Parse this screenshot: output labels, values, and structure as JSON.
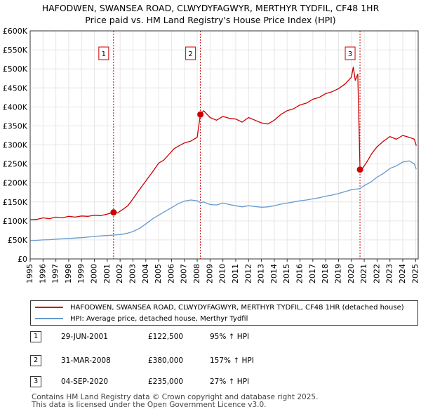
{
  "title": {
    "line1": "HAFODWEN, SWANSEA ROAD, CLWYDYFAGWYR, MERTHYR TYDFIL, CF48 1HR",
    "line2": "Price paid vs. HM Land Registry's House Price Index (HPI)"
  },
  "chart_data": {
    "type": "line",
    "xlim": [
      1995,
      2025.2
    ],
    "ylim": [
      0,
      600000
    ],
    "x_ticks": [
      1995,
      1996,
      1997,
      1998,
      1999,
      2000,
      2001,
      2002,
      2003,
      2004,
      2005,
      2006,
      2007,
      2008,
      2009,
      2010,
      2011,
      2012,
      2013,
      2014,
      2015,
      2016,
      2017,
      2018,
      2019,
      2020,
      2021,
      2022,
      2023,
      2024,
      2025
    ],
    "y_ticks": [
      0,
      50000,
      100000,
      150000,
      200000,
      250000,
      300000,
      350000,
      400000,
      450000,
      500000,
      550000,
      600000
    ],
    "y_tick_labels": [
      "£0",
      "£50K",
      "£100K",
      "£150K",
      "£200K",
      "£250K",
      "£300K",
      "£350K",
      "£400K",
      "£450K",
      "£500K",
      "£550K",
      "£600K"
    ],
    "series": [
      {
        "name": "HAFODWEN, SWANSEA ROAD, CLWYDYFAGWYR, MERTHYR TYDFIL, CF48 1HR (detached house)",
        "color": "#cc0000",
        "points": [
          [
            1995.0,
            103000
          ],
          [
            1995.5,
            104000
          ],
          [
            1996.0,
            108000
          ],
          [
            1996.5,
            106000
          ],
          [
            1997.0,
            110000
          ],
          [
            1997.5,
            108000
          ],
          [
            1998.0,
            112000
          ],
          [
            1998.5,
            110000
          ],
          [
            1999.0,
            113000
          ],
          [
            1999.5,
            112000
          ],
          [
            2000.0,
            115000
          ],
          [
            2000.5,
            114000
          ],
          [
            2001.0,
            118000
          ],
          [
            2001.49,
            122500
          ],
          [
            2001.8,
            121000
          ],
          [
            2002.2,
            130000
          ],
          [
            2002.6,
            140000
          ],
          [
            2003.0,
            158000
          ],
          [
            2003.5,
            182000
          ],
          [
            2004.0,
            205000
          ],
          [
            2004.5,
            228000
          ],
          [
            2005.0,
            252000
          ],
          [
            2005.4,
            260000
          ],
          [
            2005.8,
            275000
          ],
          [
            2006.2,
            290000
          ],
          [
            2006.6,
            298000
          ],
          [
            2007.0,
            305000
          ],
          [
            2007.5,
            310000
          ],
          [
            2008.0,
            320000
          ],
          [
            2008.25,
            380000
          ],
          [
            2008.5,
            390000
          ],
          [
            2009.0,
            372000
          ],
          [
            2009.5,
            365000
          ],
          [
            2010.0,
            375000
          ],
          [
            2010.5,
            370000
          ],
          [
            2011.0,
            368000
          ],
          [
            2011.5,
            360000
          ],
          [
            2012.0,
            372000
          ],
          [
            2012.5,
            365000
          ],
          [
            2013.0,
            358000
          ],
          [
            2013.5,
            355000
          ],
          [
            2014.0,
            365000
          ],
          [
            2014.5,
            380000
          ],
          [
            2015.0,
            390000
          ],
          [
            2015.5,
            395000
          ],
          [
            2016.0,
            405000
          ],
          [
            2016.5,
            410000
          ],
          [
            2017.0,
            420000
          ],
          [
            2017.5,
            425000
          ],
          [
            2018.0,
            435000
          ],
          [
            2018.5,
            440000
          ],
          [
            2019.0,
            448000
          ],
          [
            2019.5,
            460000
          ],
          [
            2020.0,
            478000
          ],
          [
            2020.15,
            505000
          ],
          [
            2020.3,
            470000
          ],
          [
            2020.5,
            486000
          ],
          [
            2020.67,
            235000
          ],
          [
            2020.9,
            240000
          ],
          [
            2021.2,
            255000
          ],
          [
            2021.6,
            278000
          ],
          [
            2022.0,
            295000
          ],
          [
            2022.5,
            310000
          ],
          [
            2023.0,
            322000
          ],
          [
            2023.5,
            315000
          ],
          [
            2024.0,
            325000
          ],
          [
            2024.5,
            320000
          ],
          [
            2024.9,
            315000
          ],
          [
            2025.05,
            298000
          ]
        ]
      },
      {
        "name": "HPI: Average price, detached house, Merthyr Tydfil",
        "color": "#6699cc",
        "points": [
          [
            1995.0,
            48000
          ],
          [
            1995.5,
            49000
          ],
          [
            1996.0,
            50000
          ],
          [
            1996.5,
            50500
          ],
          [
            1997.0,
            52000
          ],
          [
            1997.5,
            53000
          ],
          [
            1998.0,
            54000
          ],
          [
            1998.5,
            55000
          ],
          [
            1999.0,
            56000
          ],
          [
            1999.5,
            57500
          ],
          [
            2000.0,
            59000
          ],
          [
            2000.5,
            60500
          ],
          [
            2001.0,
            61500
          ],
          [
            2001.49,
            62800
          ],
          [
            2002.0,
            64000
          ],
          [
            2002.5,
            67000
          ],
          [
            2003.0,
            72000
          ],
          [
            2003.5,
            80000
          ],
          [
            2004.0,
            92000
          ],
          [
            2004.5,
            105000
          ],
          [
            2005.0,
            115000
          ],
          [
            2005.5,
            125000
          ],
          [
            2006.0,
            135000
          ],
          [
            2006.5,
            145000
          ],
          [
            2007.0,
            152000
          ],
          [
            2007.5,
            155000
          ],
          [
            2008.0,
            153000
          ],
          [
            2008.25,
            148000
          ],
          [
            2008.5,
            150000
          ],
          [
            2009.0,
            143000
          ],
          [
            2009.5,
            142000
          ],
          [
            2010.0,
            147000
          ],
          [
            2010.5,
            143000
          ],
          [
            2011.0,
            140000
          ],
          [
            2011.5,
            137000
          ],
          [
            2012.0,
            140000
          ],
          [
            2012.5,
            138000
          ],
          [
            2013.0,
            136000
          ],
          [
            2013.5,
            137000
          ],
          [
            2014.0,
            140000
          ],
          [
            2014.5,
            144000
          ],
          [
            2015.0,
            147000
          ],
          [
            2015.5,
            150000
          ],
          [
            2016.0,
            153000
          ],
          [
            2016.5,
            155000
          ],
          [
            2017.0,
            158000
          ],
          [
            2017.5,
            161000
          ],
          [
            2018.0,
            165000
          ],
          [
            2018.5,
            168000
          ],
          [
            2019.0,
            172000
          ],
          [
            2019.5,
            177000
          ],
          [
            2020.0,
            182000
          ],
          [
            2020.67,
            185000
          ],
          [
            2021.0,
            193000
          ],
          [
            2021.5,
            202000
          ],
          [
            2022.0,
            215000
          ],
          [
            2022.5,
            225000
          ],
          [
            2023.0,
            238000
          ],
          [
            2023.5,
            245000
          ],
          [
            2024.0,
            255000
          ],
          [
            2024.5,
            258000
          ],
          [
            2024.9,
            250000
          ],
          [
            2025.05,
            236000
          ]
        ]
      }
    ],
    "sales": [
      {
        "label": "1",
        "x": 2001.49,
        "price": 122500
      },
      {
        "label": "2",
        "x": 2008.25,
        "price": 380000
      },
      {
        "label": "3",
        "x": 2020.67,
        "price": 235000
      }
    ],
    "grid": true
  },
  "legend": {
    "property_label": "HAFODWEN, SWANSEA ROAD, CLWYDYFAGWYR, MERTHYR TYDFIL, CF48 1HR (detached house)",
    "hpi_label": "HPI: Average price, detached house, Merthyr Tydfil",
    "property_color": "#cc0000",
    "hpi_color": "#6699cc"
  },
  "transactions": [
    {
      "num": "1",
      "date": "29-JUN-2001",
      "price": "£122,500",
      "hpi": "95% ↑ HPI"
    },
    {
      "num": "2",
      "date": "31-MAR-2008",
      "price": "£380,000",
      "hpi": "157% ↑ HPI"
    },
    {
      "num": "3",
      "date": "04-SEP-2020",
      "price": "£235,000",
      "hpi": "27% ↑ HPI"
    }
  ],
  "footer": {
    "line1": "Contains HM Land Registry data © Crown copyright and database right 2025.",
    "line2": "This data is licensed under the Open Government Licence v3.0."
  }
}
